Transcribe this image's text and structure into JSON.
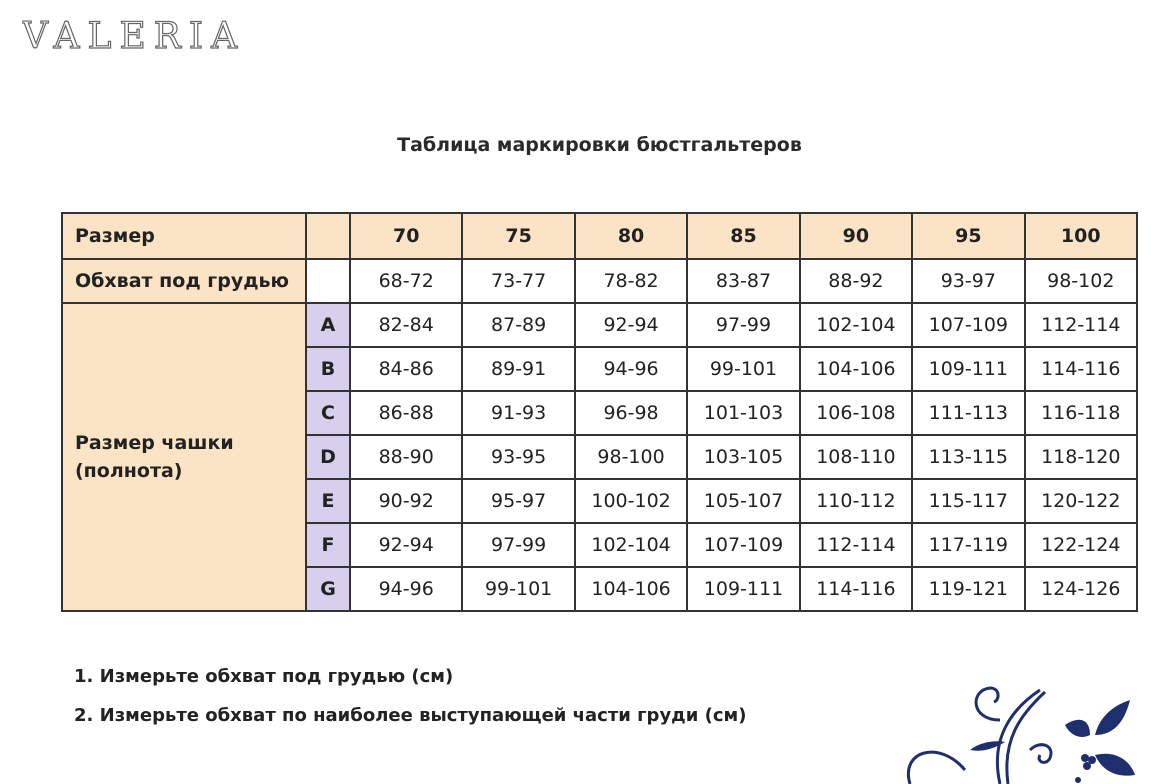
{
  "brand": {
    "logo_text": "VALERIA"
  },
  "title": "Таблица маркировки бюстгальтеров",
  "colors": {
    "label_bg": "#fbe3c6",
    "cup_bg": "#d6d0ec",
    "ornament": "#1f2f6e"
  },
  "table": {
    "size_label": "Размер",
    "sizes": [
      "70",
      "75",
      "80",
      "85",
      "90",
      "95",
      "100"
    ],
    "underbust_label": "Обхват под грудью",
    "underbust": [
      "68-72",
      "73-77",
      "78-82",
      "83-87",
      "88-92",
      "93-97",
      "98-102"
    ],
    "cup_label_1": "Размер чашки",
    "cup_label_2": "(полнота)",
    "cups": [
      {
        "cup": "A",
        "values": [
          "82-84",
          "87-89",
          "92-94",
          "97-99",
          "102-104",
          "107-109",
          "112-114"
        ]
      },
      {
        "cup": "B",
        "values": [
          "84-86",
          "89-91",
          "94-96",
          "99-101",
          "104-106",
          "109-111",
          "114-116"
        ]
      },
      {
        "cup": "C",
        "values": [
          "86-88",
          "91-93",
          "96-98",
          "101-103",
          "106-108",
          "111-113",
          "116-118"
        ]
      },
      {
        "cup": "D",
        "values": [
          "88-90",
          "93-95",
          "98-100",
          "103-105",
          "108-110",
          "113-115",
          "118-120"
        ]
      },
      {
        "cup": "E",
        "values": [
          "90-92",
          "95-97",
          "100-102",
          "105-107",
          "110-112",
          "115-117",
          "120-122"
        ]
      },
      {
        "cup": "F",
        "values": [
          "92-94",
          "97-99",
          "102-104",
          "107-109",
          "112-114",
          "117-119",
          "122-124"
        ]
      },
      {
        "cup": "G",
        "values": [
          "94-96",
          "99-101",
          "104-106",
          "109-111",
          "114-116",
          "119-121",
          "124-126"
        ]
      }
    ]
  },
  "notes": [
    "1. Измерьте обхват под грудью (см)",
    "2. Измерьте обхват по наиболее выступающей части груди (см)"
  ]
}
